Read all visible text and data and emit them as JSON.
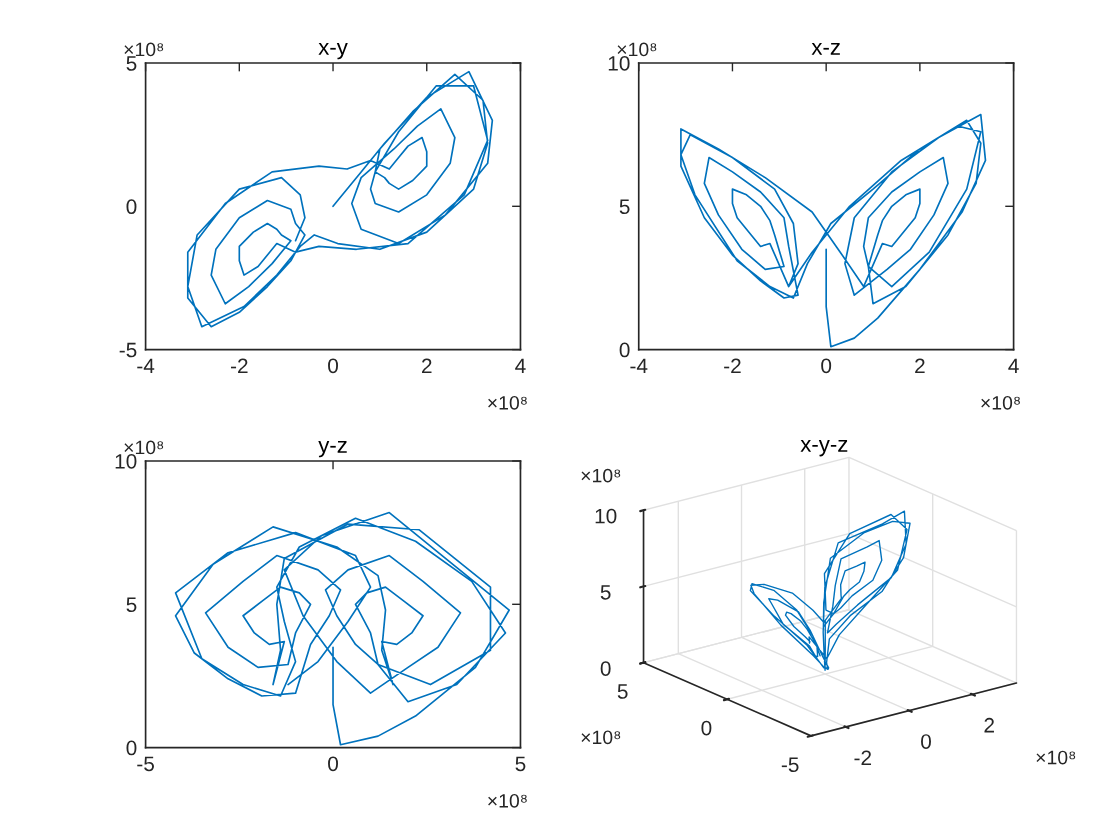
{
  "chart_data": [
    {
      "type": "line",
      "title": "x-y",
      "x": [
        0.0,
        0.0,
        0.1,
        0.6,
        1.1,
        2.0,
        2.9,
        3.4,
        3.3,
        2.4,
        1.4,
        0.6,
        0.4,
        0.6,
        1.3,
        1.8,
        2.3,
        2.6,
        2.5,
        2.0,
        1.4,
        0.9,
        0.8,
        0.9,
        1.4,
        2.2,
        3.0,
        3.3,
        2.8,
        1.6,
        0.5,
        -0.3,
        -0.8,
        -1.2,
        -1.4,
        -1.6,
        -1.9,
        -2.0,
        -2.0,
        -1.7,
        -1.4,
        -1.2,
        -1.1,
        -0.9,
        -1.3,
        -1.8,
        -2.3,
        -2.6,
        -2.5,
        -2.0,
        -1.4,
        -0.9,
        -0.8,
        -0.6,
        -0.9,
        -1.4,
        -2.0,
        -2.6,
        -3.1,
        -3.1,
        -2.3,
        -1.3,
        -0.3,
        0.3,
        0.8,
        1.2,
        1.4,
        1.6,
        1.9,
        2.0,
        2.0,
        1.7,
        1.4,
        1.2,
        1.1,
        0.9,
        1.0,
        1.7,
        2.6,
        3.2,
        3.3,
        3.0,
        2.0,
        1.0,
        0.1,
        -0.4,
        -0.7,
        -1.2,
        -1.9,
        -2.8,
        -3.1,
        -2.9,
        -2.0,
        -1.1,
        -0.7,
        -0.6,
        -0.8
      ],
      "series": [
        {
          "color": "#0072bd",
          "values": [
            0.0,
            0.0,
            0.2,
            1.2,
            2.2,
            3.8,
            4.7,
            3.0,
            1.5,
            -0.3,
            -1.3,
            -0.8,
            0.1,
            1.0,
            2.0,
            2.8,
            3.4,
            2.4,
            1.5,
            0.4,
            -0.2,
            0.1,
            0.6,
            1.2,
            2.6,
            4.2,
            4.2,
            2.3,
            0.4,
            -1.3,
            -1.5,
            -1.4,
            -1.6,
            -1.3,
            -1.7,
            -2.1,
            -2.4,
            -1.9,
            -1.4,
            -0.9,
            -0.6,
            -0.8,
            -1.0,
            -1.2,
            -2.0,
            -2.8,
            -3.4,
            -2.4,
            -1.5,
            -0.4,
            0.2,
            -0.1,
            -0.6,
            -1.0,
            -1.9,
            -2.8,
            -3.7,
            -4.2,
            -3.2,
            -1.6,
            0.1,
            1.2,
            1.4,
            1.3,
            1.6,
            1.3,
            1.7,
            2.1,
            2.4,
            1.9,
            1.4,
            0.9,
            0.6,
            0.8,
            1.0,
            1.2,
            2.0,
            3.3,
            4.6,
            3.7,
            2.2,
            0.6,
            -0.9,
            -1.5,
            -1.3,
            -1.0,
            -1.4,
            -2.4,
            -3.5,
            -4.2,
            -2.8,
            -1.0,
            0.6,
            1.0,
            0.4,
            -0.4,
            -1.2
          ]
        }
      ],
      "line_style": "solid",
      "xlim": [
        -4,
        4
      ],
      "xticks": [
        -4,
        -2,
        0,
        2,
        4
      ],
      "ylim": [
        -5,
        5
      ],
      "yticks": [
        -5,
        0,
        5
      ],
      "annotations": [
        "×10⁸",
        "×10⁸"
      ]
    },
    {
      "type": "line",
      "title": "x-z",
      "x": [
        0.0,
        0.0,
        0.1,
        0.6,
        1.1,
        2.0,
        2.9,
        3.4,
        3.3,
        2.4,
        1.4,
        0.6,
        0.4,
        0.6,
        1.3,
        1.8,
        2.3,
        2.6,
        2.5,
        2.0,
        1.4,
        0.9,
        0.8,
        0.9,
        1.4,
        2.2,
        3.0,
        3.3,
        2.8,
        1.6,
        0.5,
        -0.3,
        -0.8,
        -1.2,
        -1.4,
        -1.6,
        -1.9,
        -2.0,
        -2.0,
        -1.7,
        -1.4,
        -1.2,
        -1.1,
        -0.9,
        -1.3,
        -1.8,
        -2.3,
        -2.6,
        -2.5,
        -2.0,
        -1.4,
        -0.9,
        -0.8,
        -0.6,
        -0.9,
        -1.4,
        -2.0,
        -2.6,
        -3.1,
        -3.1,
        -2.3,
        -1.3,
        -0.3,
        0.3,
        0.8,
        1.2,
        1.4,
        1.6,
        1.9,
        2.0,
        2.0,
        1.7,
        1.4,
        1.2,
        1.1,
        0.9,
        1.0,
        1.7,
        2.6,
        3.2,
        3.3,
        3.0,
        2.0,
        1.0,
        0.1,
        -0.4,
        -0.7,
        -1.2,
        -1.9,
        -2.8,
        -3.1,
        -2.9,
        -2.0,
        -1.1,
        -0.7,
        -0.6,
        -0.8
      ],
      "series": [
        {
          "color": "#0072bd",
          "values": [
            3.5,
            1.5,
            0.1,
            0.4,
            1.1,
            2.8,
            4.8,
            6.6,
            8.2,
            7.4,
            6.2,
            4.6,
            3.0,
            1.9,
            2.8,
            3.5,
            4.7,
            5.8,
            6.7,
            6.2,
            5.5,
            4.6,
            3.6,
            2.9,
            2.2,
            3.4,
            5.6,
            7.6,
            7.8,
            6.6,
            5.0,
            3.4,
            2.2,
            3.7,
            3.6,
            4.0,
            4.6,
            5.1,
            5.6,
            5.4,
            5.0,
            4.5,
            4.0,
            2.9,
            2.8,
            3.5,
            4.7,
            5.8,
            6.7,
            6.2,
            5.5,
            4.6,
            3.6,
            1.9,
            1.8,
            2.4,
            3.3,
            4.6,
            6.4,
            7.7,
            7.0,
            6.0,
            4.8,
            3.4,
            2.2,
            3.7,
            3.6,
            4.0,
            4.6,
            5.1,
            5.6,
            5.4,
            5.0,
            4.5,
            4.0,
            2.9,
            1.6,
            2.2,
            4.0,
            5.8,
            7.2,
            8.0,
            7.0,
            5.6,
            4.4,
            3.0,
            1.8,
            2.2,
            3.1,
            5.4,
            6.8,
            7.5,
            6.7,
            5.6,
            4.4,
            3.0,
            2.2
          ]
        }
      ],
      "line_style": "solid",
      "xlim": [
        -4,
        4
      ],
      "xticks": [
        -4,
        -2,
        0,
        2,
        4
      ],
      "ylim": [
        0,
        10
      ],
      "yticks": [
        0,
        5,
        10
      ],
      "annotations": [
        "×10⁸",
        "×10⁸"
      ]
    },
    {
      "type": "line",
      "title": "y-z",
      "x": [
        0.0,
        0.0,
        0.2,
        1.2,
        2.2,
        3.8,
        4.7,
        3.0,
        1.5,
        -0.3,
        -1.3,
        -0.8,
        0.1,
        1.0,
        2.0,
        2.8,
        3.4,
        2.4,
        1.5,
        0.4,
        -0.2,
        0.1,
        0.6,
        1.2,
        2.6,
        4.2,
        4.2,
        2.3,
        0.4,
        -1.3,
        -1.5,
        -1.4,
        -1.6,
        -1.3,
        -1.7,
        -2.1,
        -2.4,
        -1.9,
        -1.4,
        -0.9,
        -0.6,
        -0.8,
        -1.0,
        -1.2,
        -2.0,
        -2.8,
        -3.4,
        -2.4,
        -1.5,
        -0.4,
        0.2,
        -0.1,
        -0.6,
        -1.0,
        -1.9,
        -2.8,
        -3.7,
        -4.2,
        -3.2,
        -1.6,
        0.1,
        1.2,
        1.4,
        1.3,
        1.6,
        1.3,
        1.7,
        2.1,
        2.4,
        1.9,
        1.4,
        0.9,
        0.6,
        0.8,
        1.0,
        1.2,
        2.0,
        3.3,
        4.6,
        3.7,
        2.2,
        0.6,
        -0.9,
        -1.5,
        -1.3,
        -1.0,
        -1.4,
        -2.4,
        -3.5,
        -4.2,
        -2.8,
        -1.0,
        0.6,
        1.0,
        0.4,
        -0.4,
        -1.2
      ],
      "series": [
        {
          "color": "#0072bd",
          "values": [
            3.5,
            1.5,
            0.1,
            0.4,
            1.1,
            2.8,
            4.8,
            6.6,
            8.2,
            7.4,
            6.2,
            4.6,
            3.0,
            1.9,
            2.8,
            3.5,
            4.7,
            5.8,
            6.7,
            6.2,
            5.5,
            4.6,
            3.6,
            2.9,
            2.2,
            3.4,
            5.6,
            7.6,
            7.8,
            6.6,
            5.0,
            3.4,
            2.2,
            3.7,
            3.6,
            4.0,
            4.6,
            5.1,
            5.6,
            5.4,
            5.0,
            4.5,
            4.0,
            2.9,
            2.8,
            3.5,
            4.7,
            5.8,
            6.7,
            6.2,
            5.5,
            4.6,
            3.6,
            1.9,
            1.8,
            2.4,
            3.3,
            4.6,
            6.4,
            7.7,
            7.0,
            6.0,
            4.8,
            3.4,
            2.2,
            3.7,
            3.6,
            4.0,
            4.6,
            5.1,
            5.6,
            5.4,
            5.0,
            4.5,
            4.0,
            2.9,
            1.6,
            2.2,
            4.0,
            5.8,
            7.2,
            8.0,
            7.0,
            5.6,
            4.4,
            3.0,
            1.8,
            2.2,
            3.1,
            5.4,
            6.8,
            7.5,
            6.7,
            5.6,
            4.4,
            3.0,
            2.2
          ]
        }
      ],
      "line_style": "solid",
      "xlim": [
        -5,
        5
      ],
      "xticks": [
        -5,
        0,
        5
      ],
      "ylim": [
        0,
        10
      ],
      "yticks": [
        0,
        5,
        10
      ],
      "annotations": [
        "×10⁸",
        "×10⁸"
      ]
    },
    {
      "type": "other",
      "title": "x-y-z",
      "annotations": [
        "×10⁸",
        "10",
        "5",
        "0",
        "×10⁸",
        "5",
        "0",
        "-5",
        "-2",
        "0",
        "2",
        "×10⁸"
      ]
    }
  ]
}
